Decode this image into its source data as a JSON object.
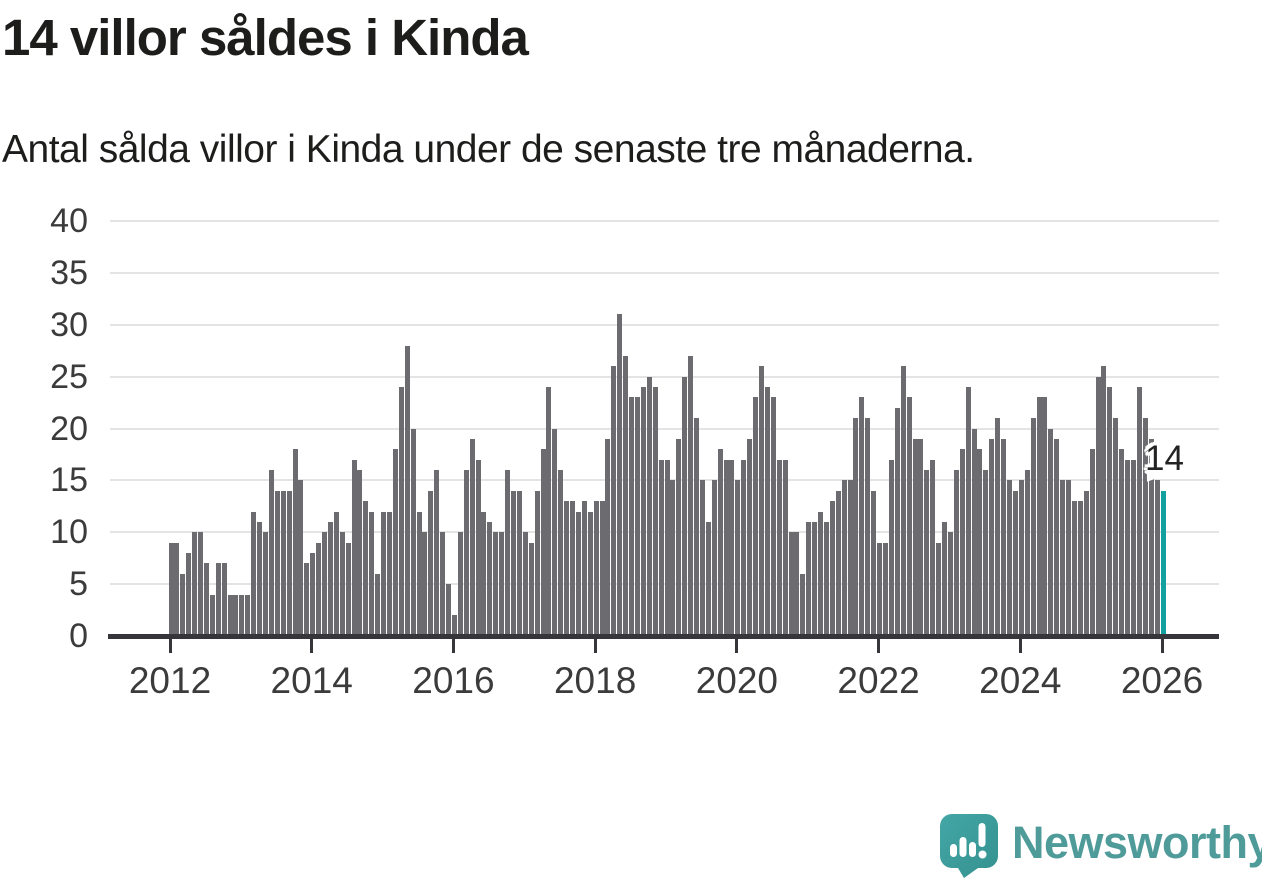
{
  "header": {
    "title": "14 villor såldes i Kinda",
    "subtitle": "Antal sålda villor i Kinda under de senaste tre månaderna."
  },
  "chart_data": {
    "type": "bar",
    "title": "14 villor såldes i Kinda",
    "subtitle": "Antal sålda villor i Kinda under de senaste tre månaderna.",
    "x_start": "2012-01",
    "frequency": "monthly",
    "xlabel": "",
    "ylabel": "",
    "ylim": [
      0,
      40
    ],
    "grid": true,
    "y_ticks": [
      0,
      5,
      10,
      15,
      20,
      25,
      30,
      35,
      40
    ],
    "year_tick_labels": [
      "2012",
      "2014",
      "2016",
      "2018",
      "2020",
      "2022",
      "2024",
      "2026"
    ],
    "bar_color": "#6b6b70",
    "highlight_color": "#12a19e",
    "highlight_index": 168,
    "annotation": {
      "text": "14",
      "index": 168
    },
    "values": [
      9,
      9,
      6,
      8,
      10,
      10,
      7,
      4,
      7,
      7,
      4,
      4,
      4,
      4,
      12,
      11,
      10,
      16,
      14,
      14,
      14,
      18,
      15,
      7,
      8,
      9,
      10,
      11,
      12,
      10,
      9,
      17,
      16,
      13,
      12,
      6,
      12,
      12,
      18,
      24,
      28,
      20,
      12,
      10,
      14,
      16,
      10,
      5,
      2,
      10,
      16,
      19,
      17,
      12,
      11,
      10,
      10,
      16,
      14,
      14,
      10,
      9,
      14,
      18,
      24,
      20,
      16,
      13,
      13,
      12,
      13,
      12,
      13,
      13,
      19,
      26,
      31,
      27,
      23,
      23,
      24,
      25,
      24,
      17,
      17,
      15,
      19,
      25,
      27,
      21,
      15,
      11,
      15,
      18,
      17,
      17,
      15,
      17,
      19,
      23,
      26,
      24,
      23,
      17,
      17,
      10,
      10,
      6,
      11,
      11,
      12,
      11,
      13,
      14,
      15,
      15,
      21,
      23,
      21,
      14,
      9,
      9,
      17,
      22,
      26,
      23,
      19,
      19,
      16,
      17,
      9,
      11,
      10,
      16,
      18,
      24,
      20,
      18,
      16,
      19,
      21,
      19,
      15,
      14,
      15,
      16,
      21,
      23,
      23,
      20,
      19,
      15,
      15,
      13,
      13,
      14,
      18,
      25,
      26,
      24,
      21,
      18,
      17,
      17,
      24,
      21,
      19,
      15,
      14
    ]
  },
  "footer": {
    "brand": "Newsworthy",
    "logo_icon": "newsworthy-bubble-chart-icon",
    "brand_color": "#4f9b9a"
  }
}
